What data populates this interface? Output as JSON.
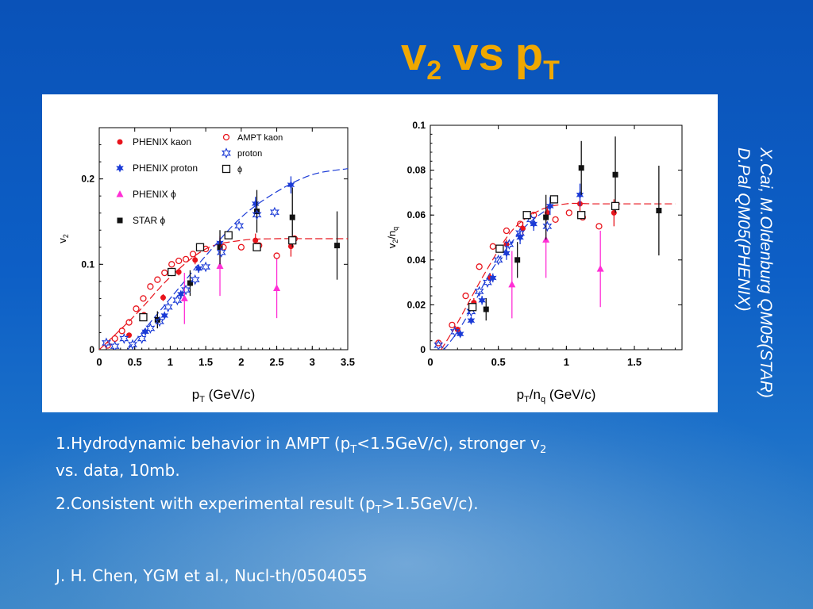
{
  "slide": {
    "title_main": "v",
    "title_sub": "2",
    "title_vs": "vs",
    "title_p": "p",
    "title_p_sub": "T",
    "credit_line1": "X.Cai, M.Oldenburg QM05(STAR)",
    "credit_line2": "D.Pal QM05(PHENIX)",
    "bullet1_a": "1.Hydrodynamic behavior in AMPT (p",
    "bullet1_sub1": "T",
    "bullet1_b": "<1.5GeV/c), stronger v",
    "bullet1_sub2": "2",
    "bullet1_c": " vs. data, 10mb.",
    "bullet2_a": "2.Consistent with experimental result (p",
    "bullet2_sub": "T",
    "bullet2_b": ">1.5GeV/c).",
    "reference": "J. H. Chen, YGM et al., Nucl-th/0504055",
    "title_color": "#f0a800"
  },
  "chart_data": [
    {
      "type": "scatter",
      "xlabel": "p_T (GeV/c)",
      "ylabel": "v_2",
      "xlim": [
        0,
        3.5
      ],
      "ylim": [
        0,
        0.26
      ],
      "xticks": [
        0,
        0.5,
        1,
        1.5,
        2,
        2.5,
        3,
        3.5
      ],
      "yticks": [
        0,
        0.1,
        0.2
      ],
      "xtick_labels": [
        "0",
        "0.5",
        "1",
        "1.5",
        "2",
        "2.5",
        "3",
        "3.5"
      ],
      "ytick_labels": [
        "0",
        "0.1",
        "0.2"
      ],
      "legend": [
        {
          "label": "PHENIX kaon",
          "marker": "filled-circle",
          "color": "#e8141c"
        },
        {
          "label": "PHENIX proton",
          "marker": "filled-star",
          "color": "#1a3ad6"
        },
        {
          "label": "PHENIX ϕ",
          "marker": "filled-triangle",
          "color": "#ff2ed5"
        },
        {
          "label": "STAR ϕ",
          "marker": "filled-square",
          "color": "#111111"
        },
        {
          "label": "AMPT kaon",
          "marker": "open-circle",
          "color": "#e8141c"
        },
        {
          "label": "proton",
          "marker": "open-star",
          "color": "#1a3ad6"
        },
        {
          "label": "ϕ",
          "marker": "open-square",
          "color": "#111111"
        }
      ],
      "series": [
        {
          "name": "PHENIX kaon",
          "marker": "filled-circle",
          "color": "#e8141c",
          "x": [
            0.42,
            0.63,
            0.9,
            1.12,
            1.35,
            1.7,
            2.2,
            2.7
          ],
          "y": [
            0.017,
            0.041,
            0.061,
            0.091,
            0.105,
            0.122,
            0.128,
            0.121
          ],
          "err": [
            0.002,
            0.003,
            0.004,
            0.004,
            0.005,
            0.006,
            0.008,
            0.012
          ]
        },
        {
          "name": "PHENIX proton",
          "marker": "filled-star",
          "color": "#1a3ad6",
          "x": [
            0.65,
            0.92,
            1.15,
            1.4,
            1.7,
            2.2,
            2.7
          ],
          "y": [
            0.021,
            0.04,
            0.065,
            0.095,
            0.125,
            0.171,
            0.193
          ],
          "err": [
            0.002,
            0.003,
            0.004,
            0.005,
            0.006,
            0.008,
            0.01
          ]
        },
        {
          "name": "PHENIX ϕ",
          "marker": "filled-triangle",
          "color": "#ff2ed5",
          "x": [
            1.2,
            1.7,
            2.5
          ],
          "y": [
            0.06,
            0.098,
            0.072
          ],
          "err": [
            0.03,
            0.035,
            0.035
          ]
        },
        {
          "name": "STAR ϕ",
          "marker": "filled-square",
          "color": "#111111",
          "x": [
            0.82,
            1.28,
            1.7,
            2.22,
            2.72,
            3.35
          ],
          "y": [
            0.035,
            0.078,
            0.12,
            0.162,
            0.155,
            0.122
          ],
          "err": [
            0.01,
            0.015,
            0.02,
            0.025,
            0.035,
            0.04
          ]
        },
        {
          "name": "AMPT kaon",
          "marker": "open-circle",
          "color": "#e8141c",
          "x": [
            0.12,
            0.22,
            0.32,
            0.42,
            0.52,
            0.62,
            0.72,
            0.82,
            0.92,
            1.02,
            1.12,
            1.22,
            1.32,
            1.5,
            1.75,
            2.0,
            2.25,
            2.5,
            2.75
          ],
          "y": [
            0.005,
            0.013,
            0.022,
            0.032,
            0.048,
            0.06,
            0.074,
            0.082,
            0.09,
            0.1,
            0.104,
            0.106,
            0.112,
            0.118,
            0.12,
            0.12,
            0.122,
            0.11,
            0.13
          ],
          "err": []
        },
        {
          "name": "proton",
          "marker": "open-star",
          "color": "#1a3ad6",
          "x": [
            0.1,
            0.22,
            0.35,
            0.47,
            0.6,
            0.72,
            0.85,
            0.97,
            1.1,
            1.22,
            1.35,
            1.5,
            1.72,
            1.97,
            2.22,
            2.47
          ],
          "y": [
            0.008,
            0.004,
            0.013,
            0.006,
            0.013,
            0.025,
            0.033,
            0.05,
            0.058,
            0.07,
            0.082,
            0.097,
            0.114,
            0.145,
            0.158,
            0.161
          ],
          "err": []
        },
        {
          "name": "ϕ",
          "marker": "open-square",
          "color": "#111111",
          "x": [
            0.62,
            1.02,
            1.42,
            1.82,
            2.22,
            2.72
          ],
          "y": [
            0.038,
            0.091,
            0.12,
            0.134,
            0.12,
            0.128
          ],
          "err": []
        }
      ],
      "curves": [
        {
          "name": "kaon fit",
          "color": "#e8141c",
          "dash": "dashed",
          "x": [
            0,
            0.5,
            1.0,
            1.5,
            2.0,
            2.5,
            3.0,
            3.5
          ],
          "y": [
            0,
            0.04,
            0.085,
            0.118,
            0.128,
            0.13,
            0.13,
            0.13
          ]
        },
        {
          "name": "proton fit",
          "color": "#1a3ad6",
          "dash": "dashed",
          "x": [
            0.4,
            0.75,
            1.0,
            1.25,
            1.5,
            2.0,
            2.5,
            3.0,
            3.5
          ],
          "y": [
            0,
            0.035,
            0.06,
            0.085,
            0.11,
            0.155,
            0.185,
            0.205,
            0.212
          ]
        }
      ]
    },
    {
      "type": "scatter",
      "xlabel": "p_T/n_q (GeV/c)",
      "ylabel": "v_2/n_q",
      "xlim": [
        0,
        1.85
      ],
      "ylim": [
        0,
        0.1
      ],
      "xticks": [
        0,
        0.5,
        1,
        1.5
      ],
      "yticks": [
        0,
        0.02,
        0.04,
        0.06,
        0.08,
        0.1
      ],
      "xtick_labels": [
        "0",
        "0.5",
        "1",
        "1.5"
      ],
      "ytick_labels": [
        "0",
        "0.02",
        "0.04",
        "0.06",
        "0.08",
        "0.1"
      ],
      "series": [
        {
          "name": "PHENIX kaon",
          "marker": "filled-circle",
          "color": "#e8141c",
          "x": [
            0.2,
            0.32,
            0.44,
            0.56,
            0.68,
            0.86,
            1.1,
            1.35
          ],
          "y": [
            0.009,
            0.021,
            0.032,
            0.047,
            0.054,
            0.061,
            0.065,
            0.061
          ],
          "err": [
            0.001,
            0.002,
            0.002,
            0.002,
            0.003,
            0.003,
            0.004,
            0.006
          ]
        },
        {
          "name": "PHENIX proton",
          "marker": "filled-star",
          "color": "#1a3ad6",
          "x": [
            0.22,
            0.3,
            0.38,
            0.46,
            0.56,
            0.66,
            0.76,
            0.88,
            1.1
          ],
          "y": [
            0.007,
            0.013,
            0.022,
            0.032,
            0.043,
            0.05,
            0.056,
            0.064,
            0.069
          ],
          "err": [
            0.001,
            0.001,
            0.002,
            0.002,
            0.003,
            0.003,
            0.003,
            0.004,
            0.005
          ]
        },
        {
          "name": "PHENIX ϕ",
          "marker": "filled-triangle",
          "color": "#ff2ed5",
          "x": [
            0.6,
            0.85,
            1.25
          ],
          "y": [
            0.029,
            0.049,
            0.036
          ],
          "err": [
            0.015,
            0.017,
            0.017
          ]
        },
        {
          "name": "STAR ϕ",
          "marker": "filled-square",
          "color": "#111111",
          "x": [
            0.41,
            0.64,
            0.85,
            1.11,
            1.36,
            1.68
          ],
          "y": [
            0.018,
            0.04,
            0.059,
            0.081,
            0.078,
            0.062
          ],
          "err": [
            0.005,
            0.008,
            0.01,
            0.012,
            0.017,
            0.02
          ]
        },
        {
          "name": "AMPT kaon",
          "marker": "open-circle",
          "color": "#e8141c",
          "x": [
            0.06,
            0.16,
            0.26,
            0.36,
            0.46,
            0.56,
            0.66,
            0.76,
            0.92,
            1.02,
            1.12,
            1.24
          ],
          "y": [
            0.003,
            0.011,
            0.024,
            0.037,
            0.046,
            0.053,
            0.056,
            0.06,
            0.058,
            0.061,
            0.059,
            0.055
          ],
          "err": []
        },
        {
          "name": "proton",
          "marker": "open-star",
          "color": "#1a3ad6",
          "x": [
            0.06,
            0.18,
            0.3,
            0.36,
            0.42,
            0.5,
            0.58,
            0.66,
            0.74,
            0.86
          ],
          "y": [
            0.002,
            0.008,
            0.017,
            0.026,
            0.03,
            0.04,
            0.047,
            0.052,
            0.058,
            0.055
          ],
          "err": []
        },
        {
          "name": "ϕ",
          "marker": "open-square",
          "color": "#111111",
          "x": [
            0.31,
            0.51,
            0.71,
            0.91,
            1.11,
            1.36
          ],
          "y": [
            0.019,
            0.045,
            0.06,
            0.067,
            0.06,
            0.064
          ],
          "err": []
        }
      ],
      "curves": [
        {
          "name": "kaon fit",
          "color": "#e8141c",
          "dash": "dashed",
          "x": [
            0.08,
            0.2,
            0.4,
            0.6,
            0.8,
            1.0,
            1.2,
            1.4,
            1.6,
            1.8
          ],
          "y": [
            0,
            0.012,
            0.034,
            0.053,
            0.062,
            0.065,
            0.065,
            0.065,
            0.065,
            0.065
          ]
        },
        {
          "name": "proton fit",
          "color": "#1a3ad6",
          "dash": "dashed",
          "x": [
            0.1,
            0.2,
            0.3,
            0.4,
            0.5,
            0.6,
            0.7,
            0.8,
            0.9
          ],
          "y": [
            0,
            0.008,
            0.018,
            0.03,
            0.04,
            0.048,
            0.055,
            0.06,
            0.064
          ]
        }
      ]
    }
  ]
}
